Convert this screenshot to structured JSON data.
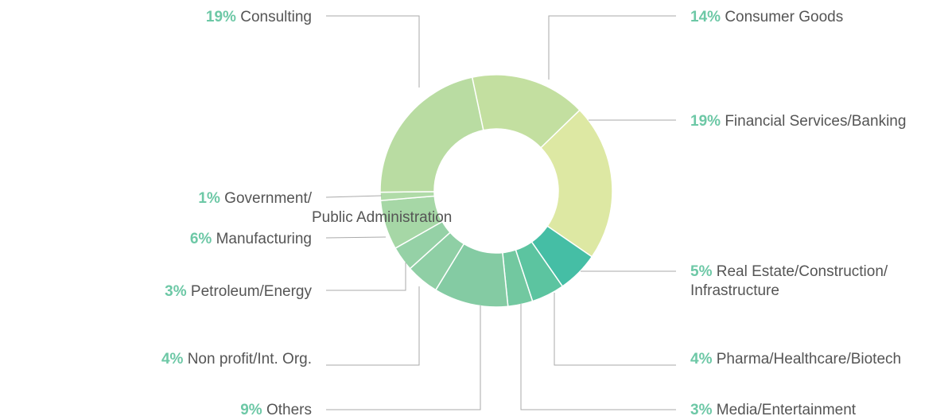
{
  "chart_data": {
    "type": "donut",
    "categories": [
      "Consumer Goods",
      "Financial Services/Banking",
      "Real Estate/Construction/Infrastructure",
      "Pharma/Healthcare/Biotech",
      "Media/Entertainment",
      "Others",
      "Non profit/Int. Org.",
      "Petroleum/Energy",
      "Manufacturing",
      "Government/Public Administration",
      "Consulting"
    ],
    "values": [
      14,
      19,
      5,
      4,
      3,
      9,
      4,
      3,
      6,
      1,
      19
    ],
    "value_labels": [
      "14%",
      "19%",
      "5%",
      "4%",
      "3%",
      "9%",
      "4%",
      "3%",
      "6%",
      "1%",
      "19%"
    ],
    "colors": [
      "#c3dfa0",
      "#dde8a3",
      "#45bea5",
      "#5cc4a0",
      "#72c8a0",
      "#84cba3",
      "#8fcfa5",
      "#95d1a6",
      "#a6d7a6",
      "#b0dba8",
      "#b9dca2"
    ]
  }
}
